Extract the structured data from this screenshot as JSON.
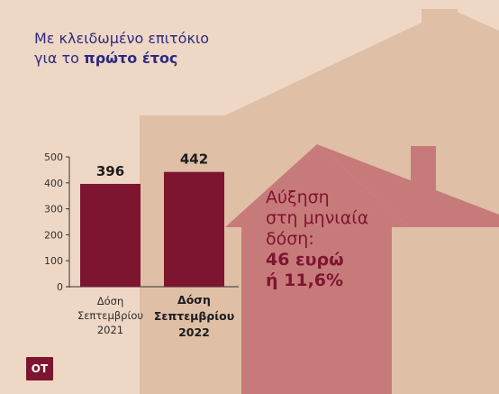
{
  "title": {
    "line1": "Με κλειδωμένο επιτόκιο",
    "line2_prefix": "για το ",
    "line2_bold": "πρώτο έτος"
  },
  "callout": {
    "line1": "Αύξηση",
    "line2": "στη μηνιαία",
    "line3": "δόση:",
    "amount1": "46 ευρώ",
    "amount2": "ή 11,6%"
  },
  "logo": {
    "text": "ΟΤ",
    "icon": "ot-logo-icon"
  },
  "colors": {
    "background": "#efd7c5",
    "house_light": "#dfbfa6",
    "house_dark": "#c77a7a",
    "bar": "#7e1530",
    "title": "#2c2b80",
    "accent": "#7e1530"
  },
  "chart_data": {
    "type": "bar",
    "categories": [
      [
        "Δόση",
        "Σεπτεμβρίου",
        "2021"
      ],
      [
        "Δόση",
        "Σεπτεμβρίου",
        "2022"
      ]
    ],
    "values": [
      396,
      442
    ],
    "value_labels": [
      "396",
      "442"
    ],
    "highlight_category_index": 1,
    "ylim": [
      0,
      500
    ],
    "yticks": [
      0,
      100,
      200,
      300,
      400,
      500
    ],
    "grid": false,
    "title": "",
    "xlabel": "",
    "ylabel": ""
  }
}
